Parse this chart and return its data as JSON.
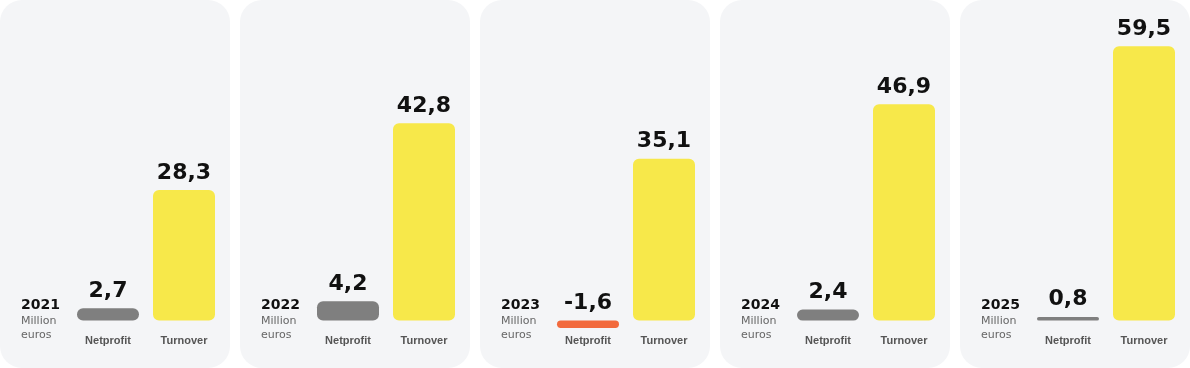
{
  "chart_data": [
    {
      "type": "bar",
      "title": "2021",
      "ylabel": "Million euros",
      "categories": [
        "Netprofit",
        "Turnover"
      ],
      "values": [
        2.7,
        28.3
      ],
      "colors": [
        "#7f7f7f",
        "#f7e84a"
      ],
      "value_labels": [
        "2,7",
        "28,3"
      ]
    },
    {
      "type": "bar",
      "title": "2022",
      "ylabel": "Million euros",
      "categories": [
        "Netprofit",
        "Turnover"
      ],
      "values": [
        4.2,
        42.8
      ],
      "colors": [
        "#7f7f7f",
        "#f7e84a"
      ],
      "value_labels": [
        "4,2",
        "42,8"
      ]
    },
    {
      "type": "bar",
      "title": "2023",
      "ylabel": "Million euros",
      "categories": [
        "Netprofit",
        "Turnover"
      ],
      "values": [
        -1.6,
        35.1
      ],
      "colors": [
        "#f26a3d",
        "#f7e84a"
      ],
      "value_labels": [
        "-1,6",
        "35,1"
      ]
    },
    {
      "type": "bar",
      "title": "2024",
      "ylabel": "Million euros",
      "categories": [
        "Netprofit",
        "Turnover"
      ],
      "values": [
        2.4,
        46.9
      ],
      "colors": [
        "#7f7f7f",
        "#f7e84a"
      ],
      "value_labels": [
        "2,4",
        "46,9"
      ]
    },
    {
      "type": "bar",
      "title": "2025",
      "ylabel": "Million euros",
      "categories": [
        "Netprofit",
        "Turnover"
      ],
      "values": [
        0.8,
        59.5
      ],
      "colors": [
        "#7f7f7f",
        "#f7e84a"
      ],
      "value_labels": [
        "0,8",
        "59,5"
      ]
    }
  ]
}
